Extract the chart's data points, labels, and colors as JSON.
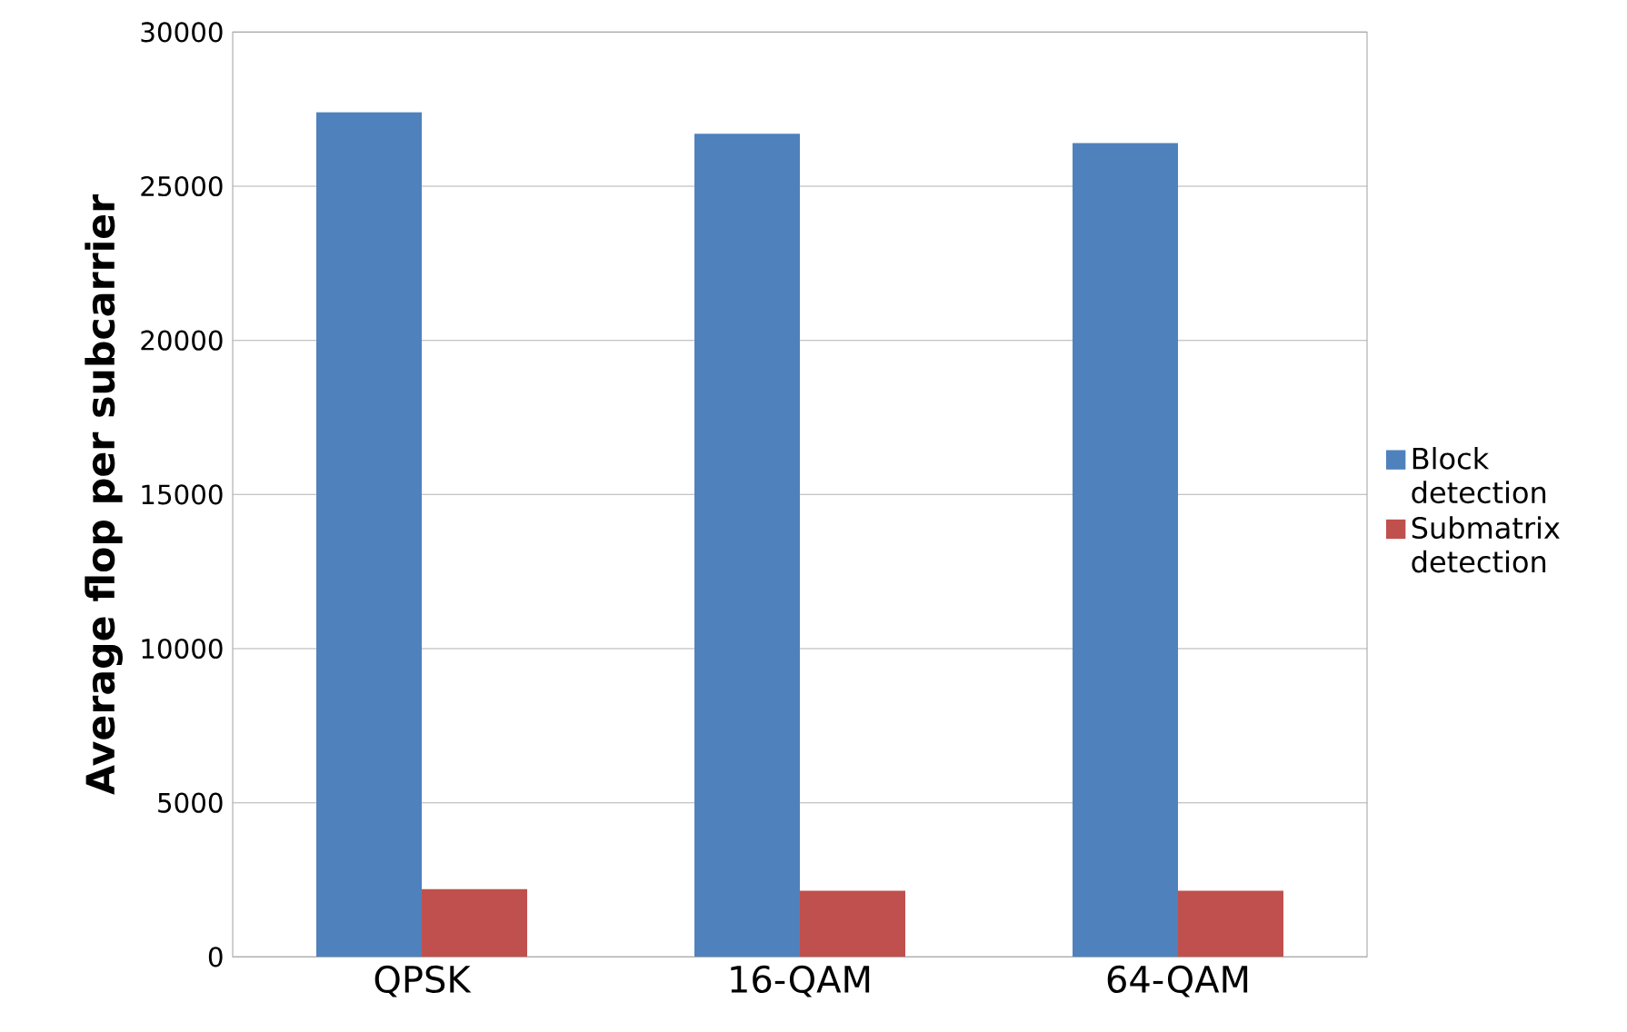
{
  "chart_data": {
    "type": "bar",
    "ylabel": "Average flop  per subcarrier",
    "categories": [
      "QPSK",
      "16-QAM",
      "64-QAM"
    ],
    "series": [
      {
        "name": "Block detection",
        "color": "#4f81bd",
        "values": [
          27400,
          26700,
          26400
        ]
      },
      {
        "name": "Submatrix detection",
        "color": "#c0504d",
        "values": [
          2200,
          2150,
          2150
        ]
      }
    ],
    "ylim": [
      0,
      30000
    ],
    "yticks": [
      0,
      5000,
      10000,
      15000,
      20000,
      25000,
      30000
    ],
    "grid": "y",
    "legend": "right"
  }
}
